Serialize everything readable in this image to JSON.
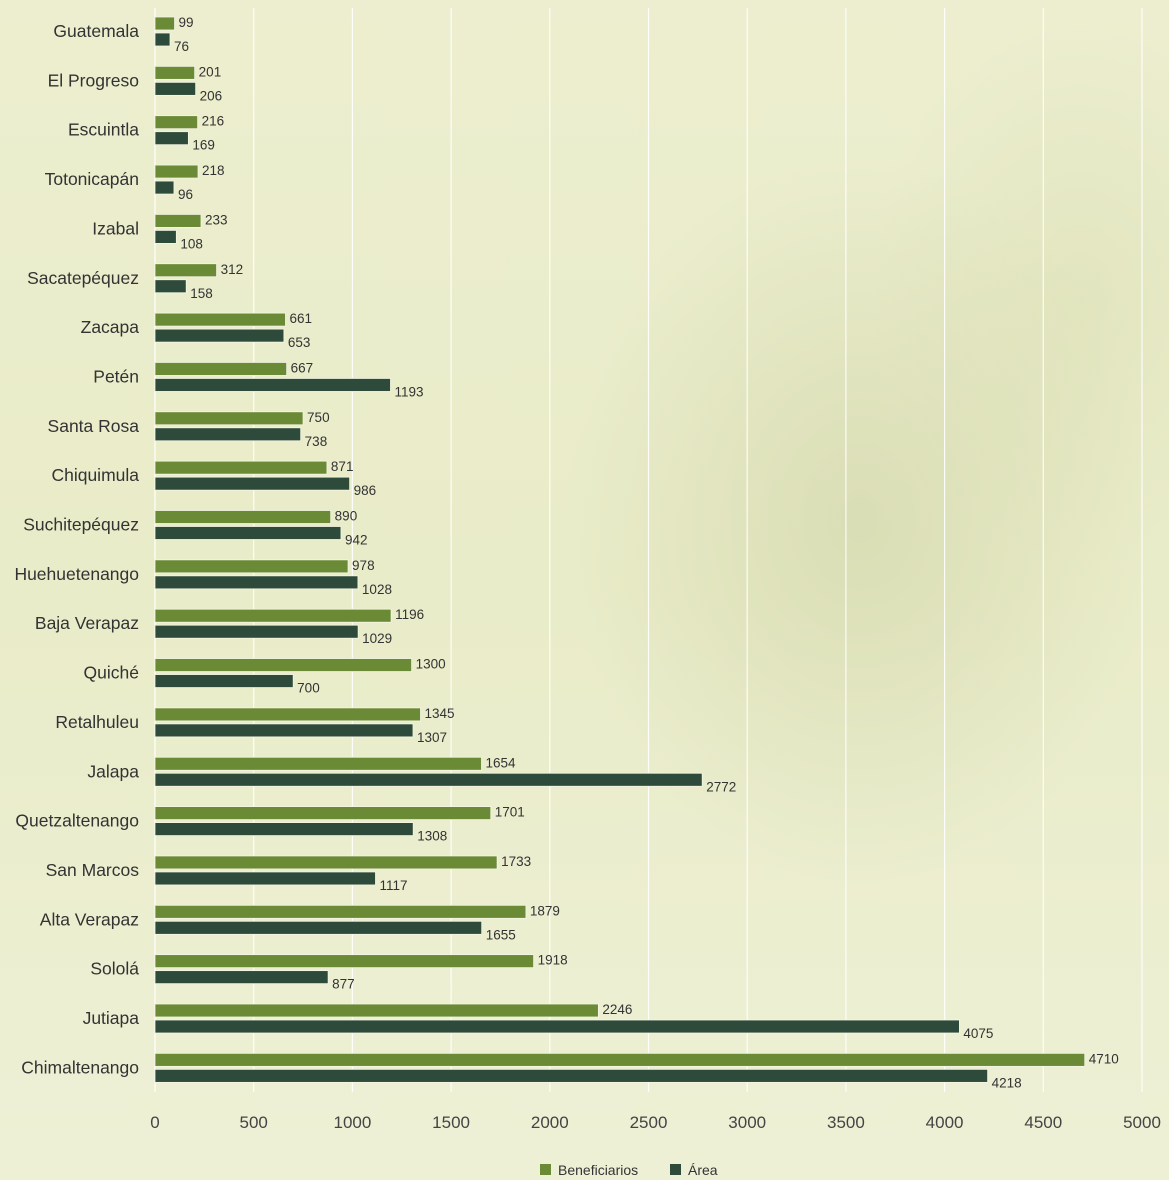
{
  "chart_data": {
    "type": "bar",
    "orientation": "horizontal",
    "categories": [
      "Guatemala",
      "El Progreso",
      "Escuintla",
      "Totonicapán",
      "Izabal",
      "Sacatepéquez",
      "Zacapa",
      "Petén",
      "Santa Rosa",
      "Chiquimula",
      "Suchitepéquez",
      "Huehuetenango",
      "Baja Verapaz",
      "Quiché",
      "Retalhuleu",
      "Jalapa",
      "Quetzaltenango",
      "San Marcos",
      "Alta Verapaz",
      "Sololá",
      "Jutiapa",
      "Chimaltenango"
    ],
    "series": [
      {
        "name": "Beneficiarios",
        "color": "#6b8a35",
        "values": [
          99,
          201,
          216,
          218,
          233,
          312,
          661,
          667,
          750,
          871,
          890,
          978,
          1196,
          1300,
          1345,
          1654,
          1701,
          1733,
          1879,
          1918,
          2246,
          4710
        ]
      },
      {
        "name": "Área",
        "color": "#2e4a3a",
        "values": [
          76,
          206,
          169,
          96,
          108,
          158,
          653,
          1193,
          738,
          986,
          942,
          1028,
          1029,
          700,
          1307,
          2772,
          1308,
          1117,
          1655,
          877,
          4075,
          4218
        ]
      }
    ],
    "xlim": [
      0,
      5000
    ],
    "xticks": [
      0,
      500,
      1000,
      1500,
      2000,
      2500,
      3000,
      3500,
      4000,
      4500,
      5000
    ],
    "grid": "vertical",
    "legend": "bottom-center"
  }
}
